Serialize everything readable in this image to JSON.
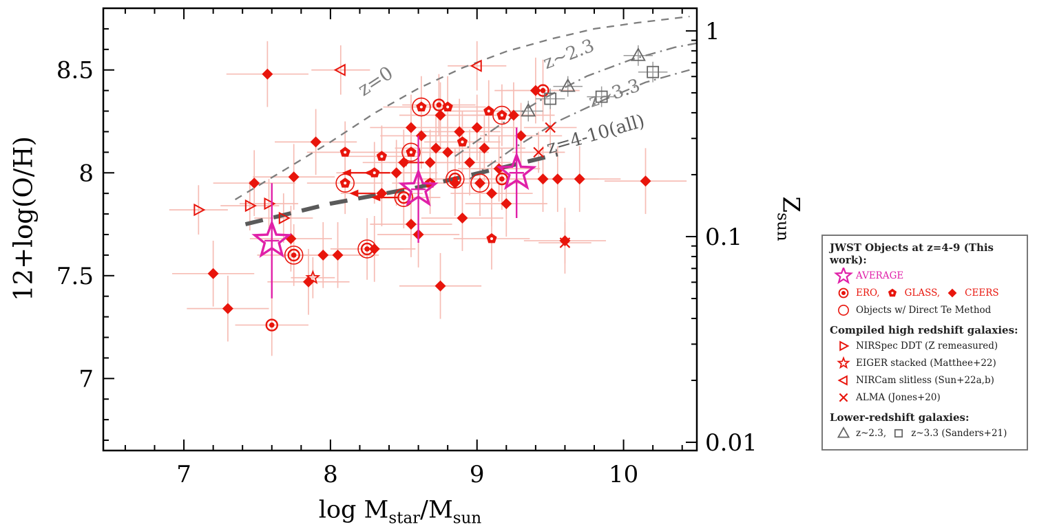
{
  "colors": {
    "red": "#e8150c",
    "pale_err": "#f6bcb4",
    "magenta": "#e020a8",
    "curve_gray": "#7d7d7d",
    "fit_gray": "#5a5a5a",
    "sample_gray": "#666666",
    "sample_err_gray": "#999999",
    "axis_black": "#000000"
  },
  "chart_data": {
    "type": "scatter",
    "xlabel_parts": {
      "p1": "log M",
      "s1": "star",
      "p2": "/M",
      "s2": "sun"
    },
    "ylabel_left": "12+log(O/H)",
    "ylabel_right_parts": {
      "p": "Z",
      "s": "sun"
    },
    "xlim": [
      6.45,
      10.5
    ],
    "ylim": [
      6.65,
      8.8
    ],
    "x_major_ticks": [
      7,
      8,
      9,
      10
    ],
    "x_major_labels": [
      "7",
      "8",
      "9",
      "10"
    ],
    "x_minor_step": 0.2,
    "y_major_ticks": [
      7,
      7.5,
      8,
      8.5
    ],
    "y_major_labels": [
      "7",
      "7.5",
      "8",
      "8.5"
    ],
    "y_minor_step": 0.1,
    "right_axis": {
      "solar_oh": 8.69,
      "major": [
        {
          "label": "1",
          "z": 1
        },
        {
          "label": "0.1",
          "z": 0.1
        },
        {
          "label": "0.01",
          "z": 0.01
        }
      ]
    },
    "grid": false,
    "curves": [
      {
        "id": "z0",
        "style": "dash",
        "width": 2.3,
        "color": "#7d7d7d",
        "label": {
          "text": "z=0",
          "x": 8.33,
          "y": 8.42,
          "rot": -33,
          "size": 27
        },
        "points": [
          [
            7.35,
            7.87
          ],
          [
            7.7,
            8.02
          ],
          [
            8.0,
            8.15
          ],
          [
            8.3,
            8.29
          ],
          [
            8.6,
            8.41
          ],
          [
            8.9,
            8.51
          ],
          [
            9.2,
            8.59
          ],
          [
            9.5,
            8.65
          ],
          [
            9.8,
            8.7
          ],
          [
            10.1,
            8.73
          ],
          [
            10.45,
            8.76
          ]
        ]
      },
      {
        "id": "z2.3",
        "style": "dashdot",
        "width": 2.3,
        "color": "#7d7d7d",
        "label": {
          "text": "z~2.3",
          "x": 9.64,
          "y": 8.55,
          "rot": -21,
          "size": 26
        },
        "points": [
          [
            8.85,
            8.08
          ],
          [
            9.15,
            8.23
          ],
          [
            9.45,
            8.36
          ],
          [
            9.75,
            8.47
          ],
          [
            10.05,
            8.55
          ],
          [
            10.35,
            8.61
          ],
          [
            10.5,
            8.63
          ]
        ]
      },
      {
        "id": "z3.3",
        "style": "dashdot",
        "width": 2.3,
        "color": "#7d7d7d",
        "label": {
          "text": "z~3.3",
          "x": 9.95,
          "y": 8.36,
          "rot": -19,
          "size": 26
        },
        "points": [
          [
            8.95,
            7.97
          ],
          [
            9.25,
            8.12
          ],
          [
            9.55,
            8.25
          ],
          [
            9.85,
            8.35
          ],
          [
            10.15,
            8.44
          ],
          [
            10.45,
            8.5
          ]
        ]
      },
      {
        "id": "z4-10",
        "style": "longdash",
        "width": 6,
        "color": "#5a5a5a",
        "label": {
          "text": "z=4-10(all)",
          "x": 9.82,
          "y": 8.16,
          "rot": -16,
          "size": 26
        },
        "points": [
          [
            7.42,
            7.75
          ],
          [
            8.0,
            7.85
          ],
          [
            8.6,
            7.93
          ],
          [
            9.2,
            8.03
          ],
          [
            9.55,
            8.09
          ]
        ]
      }
    ],
    "series": [
      {
        "id": "ceers",
        "label": "CEERS",
        "marker": "diamond",
        "color": "#e8150c",
        "err_color": "#f6bcb4",
        "xerr": 0.28,
        "yerr": 0.16,
        "points": [
          [
            7.57,
            8.48
          ],
          [
            7.2,
            7.51
          ],
          [
            7.3,
            7.34
          ],
          [
            7.48,
            7.95
          ],
          [
            7.75,
            7.98
          ],
          [
            7.9,
            8.15
          ],
          [
            7.85,
            7.47
          ],
          [
            7.95,
            7.6
          ],
          [
            8.05,
            7.6
          ],
          [
            8.3,
            7.63
          ],
          [
            8.35,
            7.9
          ],
          [
            8.45,
            8.0
          ],
          [
            8.5,
            8.05
          ],
          [
            8.55,
            8.22
          ],
          [
            8.62,
            8.18
          ],
          [
            8.68,
            8.05
          ],
          [
            8.72,
            8.12
          ],
          [
            8.75,
            8.28
          ],
          [
            8.8,
            8.1
          ],
          [
            8.85,
            7.95
          ],
          [
            8.88,
            8.2
          ],
          [
            8.9,
            7.78
          ],
          [
            8.95,
            8.05
          ],
          [
            9.0,
            8.22
          ],
          [
            9.02,
            7.95
          ],
          [
            9.05,
            8.12
          ],
          [
            9.1,
            7.9
          ],
          [
            9.15,
            8.02
          ],
          [
            9.2,
            7.85
          ],
          [
            9.25,
            8.28
          ],
          [
            9.3,
            8.18
          ],
          [
            9.4,
            8.4
          ],
          [
            9.45,
            7.97
          ],
          [
            9.55,
            7.97
          ],
          [
            9.7,
            7.97
          ],
          [
            10.15,
            7.96
          ],
          [
            8.75,
            7.45
          ],
          [
            8.6,
            7.7
          ],
          [
            8.55,
            7.75
          ],
          [
            9.6,
            7.67
          ],
          [
            7.73,
            7.68
          ]
        ]
      },
      {
        "id": "glass",
        "label": "GLASS",
        "marker": "pentagon",
        "color": "#e8150c",
        "err_color": "#f6bcb4",
        "xerr": 0.26,
        "yerr": 0.15,
        "points": [
          [
            8.1,
            8.1
          ],
          [
            8.35,
            8.08
          ],
          [
            8.55,
            8.1
          ],
          [
            8.62,
            8.32
          ],
          [
            8.8,
            8.32
          ],
          [
            9.08,
            8.3
          ],
          [
            9.17,
            8.28
          ],
          [
            8.1,
            7.95
          ],
          [
            8.68,
            7.95
          ],
          [
            9.1,
            7.68
          ],
          [
            8.3,
            8.0
          ],
          [
            8.9,
            8.15
          ]
        ]
      },
      {
        "id": "ero",
        "label": "ERO",
        "marker": "ero",
        "color": "#e8150c",
        "err_color": "#f6bcb4",
        "xerr": 0.25,
        "yerr": 0.15,
        "points": [
          [
            8.74,
            8.33
          ],
          [
            9.45,
            8.4
          ],
          [
            7.75,
            7.6
          ],
          [
            7.6,
            7.26
          ],
          [
            8.25,
            7.63
          ],
          [
            8.5,
            7.88
          ],
          [
            8.85,
            7.97
          ],
          [
            9.17,
            7.97
          ]
        ]
      },
      {
        "id": "nirspec_ddt",
        "label": "NIRSpec DDT (Z remeasured)",
        "marker": "rtri",
        "color": "#e8150c",
        "err_color": "#f6bcb4",
        "xerr": 0.2,
        "yerr": 0.12,
        "points": [
          [
            7.1,
            7.82
          ],
          [
            7.45,
            7.84
          ],
          [
            7.58,
            7.85
          ],
          [
            7.68,
            7.78
          ]
        ]
      },
      {
        "id": "eiger",
        "label": "EIGER stacked (Matthee+22)",
        "marker": "star",
        "color": "#e8150c",
        "err_color": "#f6bcb4",
        "xerr": 0.15,
        "yerr": 0.1,
        "points": [
          [
            7.88,
            7.49
          ]
        ]
      },
      {
        "id": "nircam_slitless",
        "label": "NIRCam slitless (Sun+22a,b)",
        "marker": "ltri",
        "color": "#e8150c",
        "err_color": "#f6bcb4",
        "xerr": 0.2,
        "yerr": 0.12,
        "points": [
          [
            8.07,
            8.5
          ],
          [
            9.0,
            8.52
          ]
        ]
      },
      {
        "id": "alma",
        "label": "ALMA (Jones+20)",
        "marker": "x",
        "color": "#e8150c",
        "err_color": "#f6bcb4",
        "xerr": 0.18,
        "yerr": 0.1,
        "points": [
          [
            9.5,
            8.22
          ],
          [
            9.42,
            8.1
          ],
          [
            9.6,
            7.66
          ]
        ]
      },
      {
        "id": "sanders_z23",
        "label": "z~2.3",
        "marker": "utri",
        "color": "#666666",
        "err_color": "#999999",
        "xerr": 0.1,
        "yerr": 0.05,
        "points": [
          [
            9.35,
            8.3
          ],
          [
            9.62,
            8.42
          ],
          [
            10.1,
            8.57
          ]
        ]
      },
      {
        "id": "sanders_z33",
        "label": "z~3.3 (Sanders+21)",
        "marker": "square",
        "color": "#666666",
        "err_color": "#999999",
        "xerr": 0.1,
        "yerr": 0.05,
        "points": [
          [
            9.5,
            8.36
          ],
          [
            9.85,
            8.37
          ],
          [
            10.2,
            8.49
          ]
        ]
      },
      {
        "id": "average",
        "label": "AVERAGE",
        "marker": "bigstar",
        "color": "#e020a8",
        "err_color": "#e020a8",
        "xerr": 0.05,
        "yerr": 0.25,
        "points": [
          [
            7.6,
            7.67,
            0.05,
            0.28
          ],
          [
            8.6,
            7.92,
            0.05,
            0.26
          ],
          [
            9.27,
            8.0,
            0.05,
            0.22
          ]
        ]
      }
    ],
    "te_rings": [
      [
        8.1,
        7.95
      ],
      [
        8.5,
        7.88
      ],
      [
        8.85,
        7.97
      ],
      [
        9.17,
        8.28
      ],
      [
        8.55,
        8.1
      ],
      [
        8.25,
        7.63
      ],
      [
        7.75,
        7.6
      ],
      [
        9.02,
        7.95
      ],
      [
        8.62,
        8.32
      ]
    ],
    "upper_limits": [
      [
        8.45,
        8.0
      ],
      [
        8.3,
        8.0
      ],
      [
        8.35,
        7.9
      ],
      [
        8.68,
        8.05
      ],
      [
        8.5,
        7.88
      ]
    ]
  },
  "legend": {
    "sections": [
      {
        "title": "JWST Objects at z=4-9 (This work):",
        "rows": [
          {
            "tokens": [
              {
                "sym": "bigstar",
                "color": "#e020a8",
                "scale": 0.45
              },
              {
                "text": "AVERAGE",
                "color": "#e020a8"
              }
            ]
          },
          {
            "tokens": [
              {
                "sym": "ero",
                "color": "#e8150c",
                "scale": 0.8
              },
              {
                "text": "ERO,",
                "color": "#e8150c"
              },
              {
                "sym": "pentagon",
                "color": "#e8150c",
                "scale": 0.8
              },
              {
                "text": "GLASS,",
                "color": "#e8150c"
              },
              {
                "sym": "diamond",
                "color": "#e8150c",
                "scale": 0.8
              },
              {
                "text": "CEERS",
                "color": "#e8150c"
              }
            ]
          },
          {
            "tokens": [
              {
                "sym": "te",
                "color": "#e8150c",
                "scale": 0.55
              },
              {
                "text": "Objects w/ Direct Te Method",
                "color": "#1a1a1a"
              }
            ]
          }
        ]
      },
      {
        "title": "Compiled high redshift galaxies:",
        "rows": [
          {
            "tokens": [
              {
                "sym": "rtri",
                "color": "#e8150c",
                "scale": 0.8
              },
              {
                "text": "NIRSpec DDT (Z remeasured)",
                "color": "#1a1a1a"
              }
            ]
          },
          {
            "tokens": [
              {
                "sym": "star",
                "color": "#e8150c",
                "scale": 0.85
              },
              {
                "text": "EIGER stacked (Matthee+22)",
                "color": "#1a1a1a"
              }
            ]
          },
          {
            "tokens": [
              {
                "sym": "ltri",
                "color": "#e8150c",
                "scale": 0.8
              },
              {
                "text": "NIRCam slitless (Sun+22a,b)",
                "color": "#1a1a1a"
              }
            ]
          },
          {
            "tokens": [
              {
                "sym": "x",
                "color": "#e8150c",
                "scale": 0.8
              },
              {
                "text": "ALMA (Jones+20)",
                "color": "#1a1a1a"
              }
            ]
          }
        ]
      },
      {
        "title": "Lower-redshift galaxies:",
        "rows": [
          {
            "tokens": [
              {
                "sym": "utri",
                "color": "#666666",
                "scale": 0.8
              },
              {
                "text": "z~2.3,",
                "color": "#1a1a1a"
              },
              {
                "sym": "square",
                "color": "#666666",
                "scale": 0.65
              },
              {
                "text": "z~3.3 (Sanders+21)",
                "color": "#1a1a1a"
              }
            ]
          }
        ]
      }
    ]
  }
}
